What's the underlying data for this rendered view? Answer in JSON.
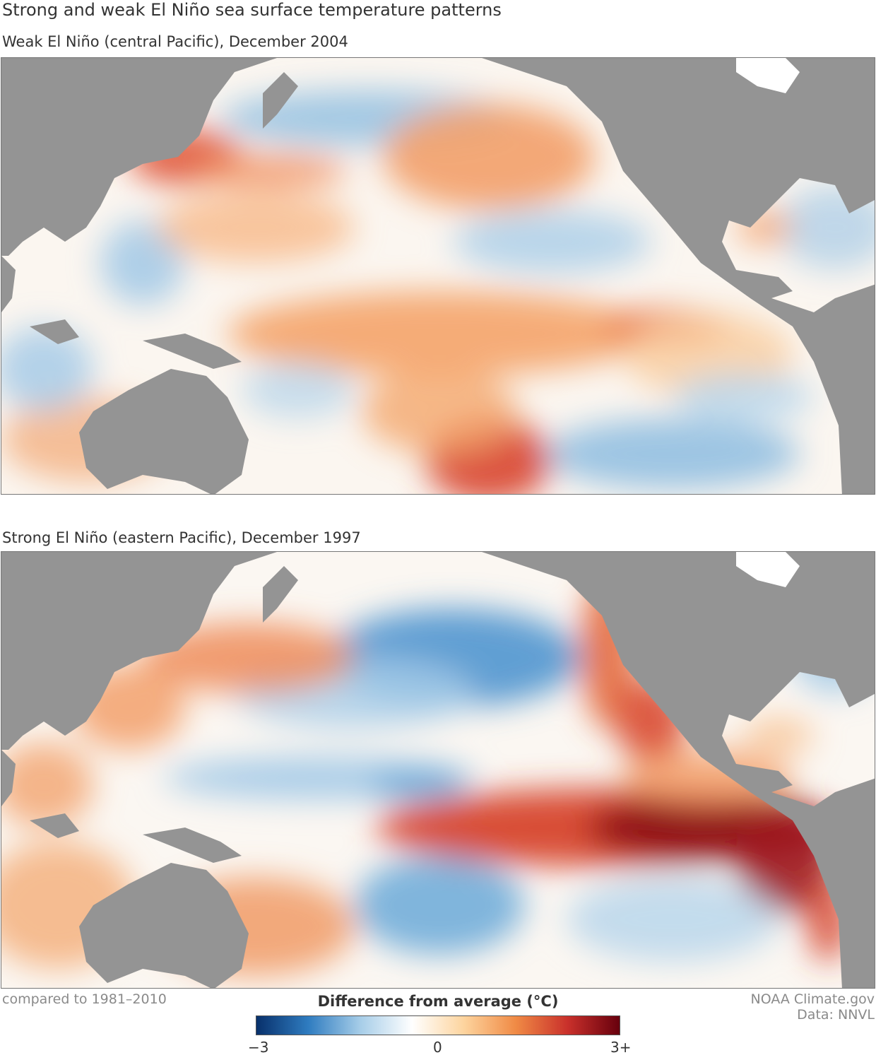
{
  "title": "Strong and weak El Niño sea surface temperature patterns",
  "panels": [
    {
      "subtitle": "Weak El Niño (central Pacific), December 2004",
      "pattern": "weak-central-pacific"
    },
    {
      "subtitle": "Strong El Niño (eastern Pacific), December 1997",
      "pattern": "strong-eastern-pacific"
    }
  ],
  "legend": {
    "title": "Difference from average (°C)",
    "min_label": "−3",
    "mid_label": "0",
    "max_label": "3+",
    "colors": [
      "#08306b",
      "#2f7cc0",
      "#a6cde8",
      "#ffffff",
      "#fdd49e",
      "#f08a45",
      "#c9302b",
      "#67000d"
    ]
  },
  "baseline": "compared to 1981–2010",
  "credits": {
    "source": "NOAA Climate.gov",
    "data": "Data: NNVL"
  },
  "land_color": "#949494"
}
